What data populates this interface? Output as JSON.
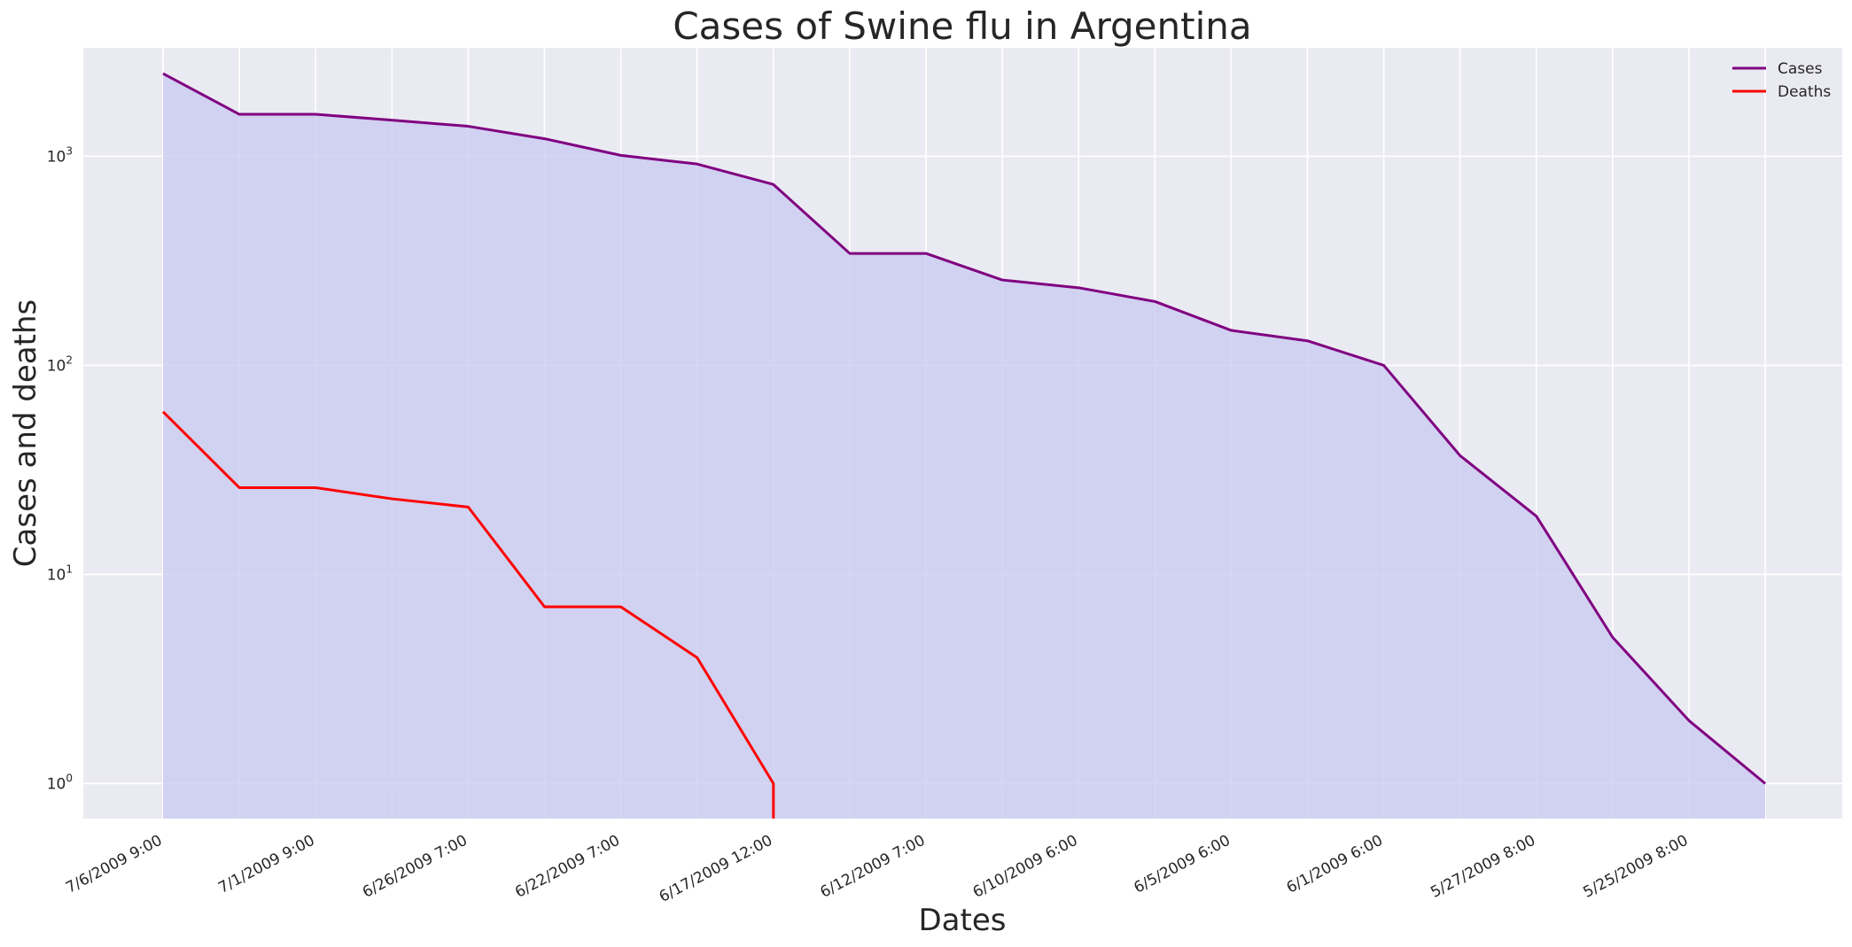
{
  "chart_data": {
    "type": "line",
    "title": "Cases of Swine flu in Argentina",
    "xlabel": "Dates",
    "ylabel": "Cases and deaths",
    "y_scale": "log",
    "ylim": [
      0.68,
      3300
    ],
    "grid": true,
    "legend_position": "top-right",
    "area_fill": "Cases",
    "x": [
      "7/6/2009 9:00",
      "",
      "7/1/2009 9:00",
      "",
      "6/26/2009 7:00",
      "",
      "6/22/2009 7:00",
      "",
      "6/17/2009 12:00",
      "",
      "6/12/2009 7:00",
      "",
      "6/10/2009 6:00",
      "",
      "6/5/2009 6:00",
      "",
      "6/1/2009 6:00",
      "",
      "5/27/2009 8:00",
      "",
      "5/25/2009 8:00",
      ""
    ],
    "x_tick_labels": [
      "7/6/2009 9:00",
      "7/1/2009 9:00",
      "6/26/2009 7:00",
      "6/22/2009 7:00",
      "6/17/2009 12:00",
      "6/12/2009 7:00",
      "6/10/2009 6:00",
      "6/5/2009 6:00",
      "6/1/2009 6:00",
      "5/27/2009 8:00",
      "5/25/2009 8:00"
    ],
    "y_tick_labels": [
      {
        "value": 1,
        "base": "10",
        "exp": "0"
      },
      {
        "value": 10,
        "base": "10",
        "exp": "1"
      },
      {
        "value": 100,
        "base": "10",
        "exp": "2"
      },
      {
        "value": 1000,
        "base": "10",
        "exp": "3"
      }
    ],
    "series": [
      {
        "name": "Cases",
        "color": "#800080",
        "values": [
          2485,
          1587,
          1587,
          1488,
          1391,
          1213,
          1010,
          918,
          733,
          343,
          343,
          256,
          235,
          202,
          147,
          131,
          100,
          37,
          19,
          5,
          2,
          1
        ]
      },
      {
        "name": "Deaths",
        "color": "#ff0000",
        "values": [
          60,
          26,
          26,
          23,
          21,
          7,
          7,
          4,
          1,
          0,
          0,
          0,
          0,
          0,
          0,
          0,
          0,
          0,
          0,
          0,
          0,
          0
        ]
      }
    ],
    "colors": {
      "plot_background": "#eaeaf2",
      "grid": "#ffffff",
      "area_fill": "#c8c8f0"
    }
  }
}
